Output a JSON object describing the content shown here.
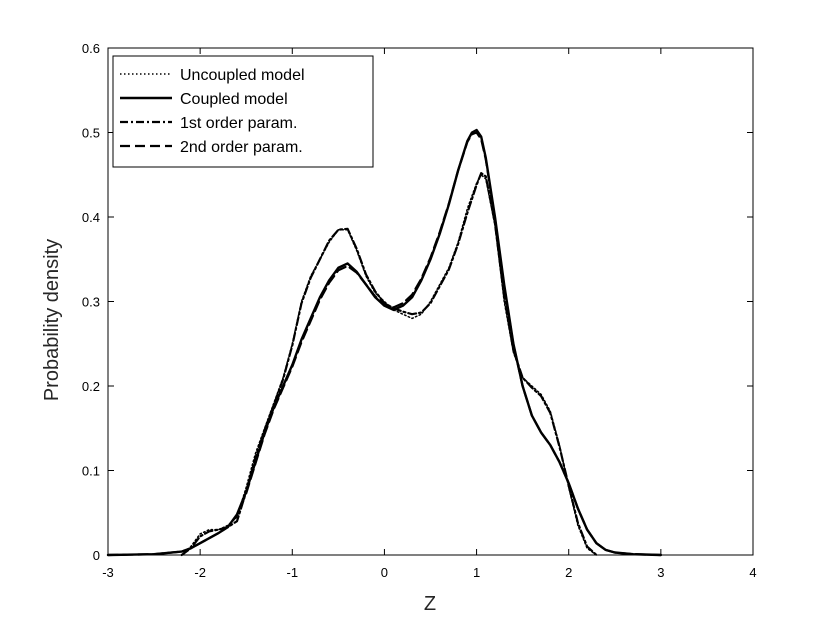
{
  "chart_data": {
    "type": "line",
    "title": "",
    "xlabel": "Z",
    "ylabel": "Probability density",
    "xlim": [
      -3,
      4
    ],
    "ylim": [
      0,
      0.6
    ],
    "xticks": [
      -3,
      -2,
      -1,
      0,
      1,
      2,
      3,
      4
    ],
    "xtick_labels": [
      "-3",
      "-2",
      "-1",
      "0",
      "1",
      "2",
      "3",
      "4"
    ],
    "yticks": [
      0,
      0.1,
      0.2,
      0.3,
      0.4,
      0.5,
      0.6
    ],
    "ytick_labels": [
      "0",
      "0.1",
      "0.2",
      "0.3",
      "0.4",
      "0.5",
      "0.6"
    ],
    "grid": false,
    "legend_position": "top-left",
    "series": [
      {
        "name": "Uncoupled model",
        "style": "dotted",
        "color": "#000000",
        "x": [
          -2.2,
          -2.1,
          -2.0,
          -1.9,
          -1.8,
          -1.7,
          -1.6,
          -1.5,
          -1.4,
          -1.3,
          -1.2,
          -1.1,
          -1.0,
          -0.9,
          -0.8,
          -0.7,
          -0.6,
          -0.5,
          -0.4,
          -0.3,
          -0.2,
          -0.1,
          0.0,
          0.1,
          0.2,
          0.3,
          0.4,
          0.5,
          0.6,
          0.7,
          0.8,
          0.9,
          1.0,
          1.05,
          1.1,
          1.2,
          1.3,
          1.4,
          1.5,
          1.6,
          1.7,
          1.8,
          1.9,
          2.0,
          2.1,
          2.2,
          2.3
        ],
        "y": [
          0.0,
          0.01,
          0.025,
          0.03,
          0.03,
          0.035,
          0.045,
          0.08,
          0.12,
          0.15,
          0.18,
          0.21,
          0.25,
          0.3,
          0.33,
          0.35,
          0.37,
          0.385,
          0.385,
          0.36,
          0.33,
          0.31,
          0.3,
          0.29,
          0.285,
          0.28,
          0.285,
          0.3,
          0.32,
          0.34,
          0.37,
          0.41,
          0.44,
          0.45,
          0.445,
          0.39,
          0.3,
          0.24,
          0.21,
          0.2,
          0.19,
          0.17,
          0.13,
          0.08,
          0.035,
          0.008,
          0.0
        ]
      },
      {
        "name": "Coupled model",
        "style": "solid",
        "color": "#000000",
        "x": [
          -3.0,
          -2.5,
          -2.2,
          -2.1,
          -2.0,
          -1.9,
          -1.8,
          -1.7,
          -1.6,
          -1.5,
          -1.4,
          -1.3,
          -1.2,
          -1.1,
          -1.0,
          -0.9,
          -0.8,
          -0.7,
          -0.6,
          -0.5,
          -0.4,
          -0.3,
          -0.2,
          -0.1,
          0.0,
          0.1,
          0.2,
          0.3,
          0.4,
          0.5,
          0.6,
          0.7,
          0.8,
          0.9,
          0.95,
          1.0,
          1.05,
          1.1,
          1.2,
          1.3,
          1.4,
          1.5,
          1.6,
          1.7,
          1.8,
          1.9,
          2.0,
          2.1,
          2.2,
          2.3,
          2.4,
          2.5,
          2.7,
          3.0
        ],
        "y": [
          0.0,
          0.001,
          0.004,
          0.008,
          0.014,
          0.02,
          0.026,
          0.033,
          0.048,
          0.075,
          0.11,
          0.145,
          0.175,
          0.2,
          0.225,
          0.255,
          0.28,
          0.305,
          0.325,
          0.34,
          0.345,
          0.335,
          0.32,
          0.305,
          0.295,
          0.29,
          0.295,
          0.305,
          0.325,
          0.35,
          0.38,
          0.415,
          0.455,
          0.49,
          0.5,
          0.503,
          0.495,
          0.47,
          0.4,
          0.32,
          0.25,
          0.2,
          0.165,
          0.145,
          0.13,
          0.11,
          0.085,
          0.055,
          0.03,
          0.014,
          0.006,
          0.003,
          0.001,
          0.0
        ]
      },
      {
        "name": "1st order param.",
        "style": "dashdot",
        "color": "#000000",
        "x": [
          -2.2,
          -2.1,
          -2.0,
          -1.9,
          -1.8,
          -1.7,
          -1.6,
          -1.5,
          -1.4,
          -1.3,
          -1.2,
          -1.1,
          -1.0,
          -0.9,
          -0.8,
          -0.7,
          -0.6,
          -0.5,
          -0.4,
          -0.3,
          -0.2,
          -0.1,
          0.0,
          0.1,
          0.2,
          0.3,
          0.4,
          0.5,
          0.6,
          0.7,
          0.8,
          0.9,
          1.0,
          1.05,
          1.1,
          1.2,
          1.3,
          1.4,
          1.5,
          1.6,
          1.7,
          1.8,
          1.9,
          2.0,
          2.1,
          2.2,
          2.3
        ],
        "y": [
          0.0,
          0.008,
          0.022,
          0.028,
          0.03,
          0.033,
          0.04,
          0.075,
          0.115,
          0.148,
          0.178,
          0.208,
          0.248,
          0.298,
          0.328,
          0.35,
          0.372,
          0.385,
          0.386,
          0.362,
          0.332,
          0.312,
          0.298,
          0.292,
          0.288,
          0.285,
          0.287,
          0.298,
          0.318,
          0.338,
          0.368,
          0.405,
          0.438,
          0.452,
          0.448,
          0.392,
          0.305,
          0.242,
          0.21,
          0.198,
          0.188,
          0.168,
          0.128,
          0.082,
          0.038,
          0.01,
          0.0
        ]
      },
      {
        "name": "2nd order param.",
        "style": "dashed",
        "color": "#000000",
        "x": [
          -3.0,
          -2.5,
          -2.2,
          -2.1,
          -2.0,
          -1.9,
          -1.8,
          -1.7,
          -1.6,
          -1.5,
          -1.4,
          -1.3,
          -1.2,
          -1.1,
          -1.0,
          -0.9,
          -0.8,
          -0.7,
          -0.6,
          -0.5,
          -0.4,
          -0.3,
          -0.2,
          -0.1,
          0.0,
          0.1,
          0.2,
          0.3,
          0.4,
          0.5,
          0.6,
          0.7,
          0.8,
          0.9,
          0.95,
          1.0,
          1.05,
          1.1,
          1.2,
          1.3,
          1.4,
          1.5,
          1.6,
          1.7,
          1.8,
          1.9,
          2.0,
          2.1,
          2.2,
          2.3,
          2.4,
          2.5,
          2.7,
          3.0
        ],
        "y": [
          0.0,
          0.001,
          0.004,
          0.008,
          0.014,
          0.02,
          0.026,
          0.033,
          0.047,
          0.073,
          0.108,
          0.143,
          0.173,
          0.198,
          0.223,
          0.252,
          0.277,
          0.302,
          0.322,
          0.337,
          0.342,
          0.334,
          0.32,
          0.306,
          0.297,
          0.293,
          0.298,
          0.308,
          0.327,
          0.352,
          0.382,
          0.416,
          0.455,
          0.489,
          0.498,
          0.5,
          0.492,
          0.468,
          0.398,
          0.318,
          0.249,
          0.2,
          0.165,
          0.145,
          0.13,
          0.11,
          0.085,
          0.055,
          0.03,
          0.014,
          0.006,
          0.003,
          0.001,
          0.0
        ]
      }
    ]
  }
}
